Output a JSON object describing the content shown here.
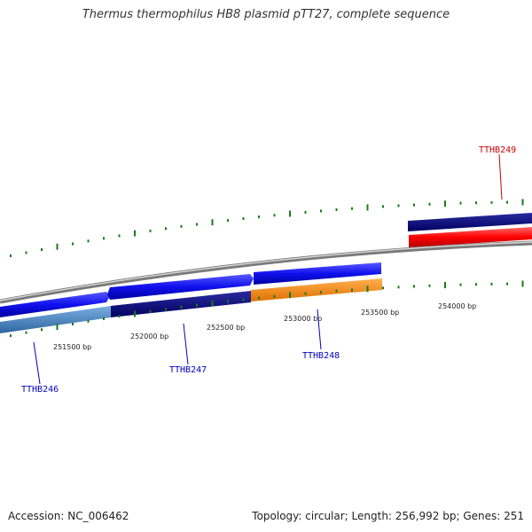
{
  "title": "Thermus thermophilus HB8 plasmid pTT27, complete sequence",
  "footer": {
    "accession": "Accession: NC_006462",
    "summary": "Topology: circular; Length: 256,992 bp; Genes: 251"
  },
  "map": {
    "colors": {
      "backbone": "#808080",
      "tick": "#1a7a1a",
      "forward_label": "#0000c0",
      "reverse_label": "#cc0000"
    },
    "position_labels": [
      "251500 bp",
      "252000 bp",
      "252500 bp",
      "253000 bp",
      "253500 bp",
      "254000 bp"
    ],
    "genes": [
      {
        "name": "TTHB246",
        "strand": "forward",
        "color": "#4a86c0"
      },
      {
        "name": "TTHB247",
        "strand": "forward",
        "color": "#101070"
      },
      {
        "name": "TTHB248",
        "strand": "forward",
        "color": "#ff8c00"
      },
      {
        "name": "TTHB249",
        "strand": "reverse",
        "color": "#ff0000"
      }
    ],
    "blue_features": {
      "color": "#1010ee",
      "dark": "#000080"
    }
  }
}
